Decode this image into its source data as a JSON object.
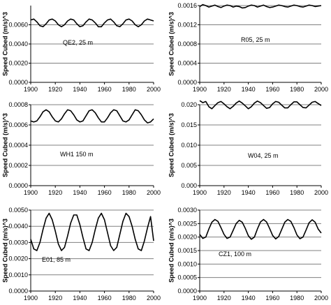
{
  "chart_data": [
    {
      "type": "line",
      "annotation": "QE2, 25 m",
      "ylabel": "Speed Cubed (m/s)^3",
      "xlim": [
        1900,
        2000
      ],
      "ylim": [
        0,
        0.008
      ],
      "x_ticks": [
        1900,
        1920,
        1940,
        1960,
        1980,
        2000
      ],
      "x_tick_labels": [
        "1900",
        "1920",
        "1940",
        "1960",
        "1980",
        "2000"
      ],
      "y_ticks": [
        0,
        0.002,
        0.004,
        0.006
      ],
      "y_tick_labels": [
        "0.0000",
        "0.0020",
        "0.0040",
        "0.0060"
      ],
      "grid": "horizontal",
      "series": [
        {
          "x": [
            1900,
            1902.5,
            1905,
            1907.5,
            1910,
            1912.5,
            1915,
            1917.5,
            1920,
            1922.5,
            1925,
            1927.5,
            1930,
            1932.5,
            1935,
            1937.5,
            1940,
            1942.5,
            1945,
            1947.5,
            1950,
            1952.5,
            1955,
            1957.5,
            1960,
            1962.5,
            1965,
            1967.5,
            1970,
            1972.5,
            1975,
            1977.5,
            1980,
            1982.5,
            1985,
            1987.5,
            1990,
            1992.5,
            1995,
            1997.5,
            2000
          ],
          "y": [
            0.0065,
            0.0066,
            0.0063,
            0.0059,
            0.0058,
            0.0061,
            0.0065,
            0.0066,
            0.0064,
            0.006,
            0.0058,
            0.006,
            0.0064,
            0.0066,
            0.0065,
            0.0061,
            0.0058,
            0.0059,
            0.0063,
            0.0066,
            0.0065,
            0.0062,
            0.0058,
            0.0058,
            0.0062,
            0.0065,
            0.0066,
            0.0063,
            0.0059,
            0.0058,
            0.0061,
            0.0065,
            0.0066,
            0.0064,
            0.006,
            0.0058,
            0.006,
            0.0064,
            0.0066,
            0.0065,
            0.0064
          ]
        }
      ]
    },
    {
      "type": "line",
      "annotation": "R05, 25 m",
      "ylabel": "Speed Cubed (m/s)^3",
      "xlim": [
        1900,
        2000
      ],
      "ylim": [
        0,
        0.0016
      ],
      "x_ticks": [
        1900,
        1920,
        1940,
        1960,
        1980,
        2000
      ],
      "x_tick_labels": [
        "1900",
        "1920",
        "1940",
        "1960",
        "1980",
        "2000"
      ],
      "y_ticks": [
        0,
        0.0004,
        0.0008,
        0.0012,
        0.0016
      ],
      "y_tick_labels": [
        "0.0000",
        "0.0004",
        "0.0008",
        "0.0012",
        "0.0016"
      ],
      "grid": "horizontal",
      "series": [
        {
          "x": [
            1900,
            1902.5,
            1905,
            1907.5,
            1910,
            1912.5,
            1915,
            1917.5,
            1920,
            1922.5,
            1925,
            1927.5,
            1930,
            1932.5,
            1935,
            1937.5,
            1940,
            1942.5,
            1945,
            1947.5,
            1950,
            1952.5,
            1955,
            1957.5,
            1960,
            1962.5,
            1965,
            1967.5,
            1970,
            1972.5,
            1975,
            1977.5,
            1980,
            1982.5,
            1985,
            1987.5,
            1990,
            1992.5,
            1995,
            1997.5,
            2000
          ],
          "y": [
            0.00158,
            0.00162,
            0.0016,
            0.00157,
            0.00159,
            0.00161,
            0.00158,
            0.00156,
            0.00159,
            0.00161,
            0.0016,
            0.00157,
            0.00159,
            0.00158,
            0.00155,
            0.00156,
            0.00159,
            0.00161,
            0.0016,
            0.00157,
            0.00159,
            0.00161,
            0.00158,
            0.00156,
            0.00157,
            0.00159,
            0.00161,
            0.0016,
            0.00158,
            0.00157,
            0.00159,
            0.00161,
            0.0016,
            0.00158,
            0.00157,
            0.00159,
            0.00161,
            0.0016,
            0.00158,
            0.00159,
            0.0016
          ]
        }
      ]
    },
    {
      "type": "line",
      "annotation": "WH1 150 m",
      "ylabel": "Speed Cubed (m/s)^3",
      "xlim": [
        1900,
        2000
      ],
      "ylim": [
        0,
        0.0008
      ],
      "x_ticks": [
        1900,
        1920,
        1940,
        1960,
        1980,
        2000
      ],
      "x_tick_labels": [
        "1900",
        "1920",
        "1940",
        "1960",
        "1980",
        "2000"
      ],
      "y_ticks": [
        0,
        0.0002,
        0.0004,
        0.0006,
        0.0008
      ],
      "y_tick_labels": [
        "0.0000",
        "0.0002",
        "0.0004",
        "0.0006",
        "0.0008"
      ],
      "grid": "horizontal",
      "series": [
        {
          "x": [
            1900,
            1902.5,
            1905,
            1907.5,
            1910,
            1912.5,
            1915,
            1917.5,
            1920,
            1922.5,
            1925,
            1927.5,
            1930,
            1932.5,
            1935,
            1937.5,
            1940,
            1942.5,
            1945,
            1947.5,
            1950,
            1952.5,
            1955,
            1957.5,
            1960,
            1962.5,
            1965,
            1967.5,
            1970,
            1972.5,
            1975,
            1977.5,
            1980,
            1982.5,
            1985,
            1987.5,
            1990,
            1992.5,
            1995,
            1997.5,
            2000
          ],
          "y": [
            0.00064,
            0.00063,
            0.00064,
            0.00068,
            0.00073,
            0.00075,
            0.00073,
            0.00068,
            0.00064,
            0.00063,
            0.00066,
            0.00071,
            0.00075,
            0.00074,
            0.0007,
            0.00065,
            0.00063,
            0.00064,
            0.00069,
            0.00074,
            0.00075,
            0.00072,
            0.00067,
            0.00063,
            0.00063,
            0.00067,
            0.00072,
            0.00075,
            0.00074,
            0.00069,
            0.00064,
            0.00063,
            0.00065,
            0.0007,
            0.00075,
            0.00074,
            0.0007,
            0.00065,
            0.00062,
            0.00063,
            0.00066
          ]
        }
      ]
    },
    {
      "type": "line",
      "annotation": "W04, 25 m",
      "ylabel": "Speed Cubed (m/s)^3",
      "xlim": [
        1900,
        2000
      ],
      "ylim": [
        0,
        0.02
      ],
      "x_ticks": [
        1900,
        1920,
        1940,
        1960,
        1980,
        2000
      ],
      "x_tick_labels": [
        "1900",
        "1920",
        "1940",
        "1960",
        "1980",
        "2000"
      ],
      "y_ticks": [
        0,
        0.005,
        0.01,
        0.015,
        0.02
      ],
      "y_tick_labels": [
        "0.000",
        "0.005",
        "0.010",
        "0.015",
        "0.020"
      ],
      "grid": "horizontal",
      "series": [
        {
          "x": [
            1900,
            1902.5,
            1905,
            1907.5,
            1910,
            1912.5,
            1915,
            1917.5,
            1920,
            1922.5,
            1925,
            1927.5,
            1930,
            1932.5,
            1935,
            1937.5,
            1940,
            1942.5,
            1945,
            1947.5,
            1950,
            1952.5,
            1955,
            1957.5,
            1960,
            1962.5,
            1965,
            1967.5,
            1970,
            1972.5,
            1975,
            1977.5,
            1980,
            1982.5,
            1985,
            1987.5,
            1990,
            1992.5,
            1995,
            1997.5,
            2000
          ],
          "y": [
            0.021,
            0.0205,
            0.0208,
            0.0195,
            0.019,
            0.0198,
            0.0205,
            0.0208,
            0.0202,
            0.0195,
            0.019,
            0.0196,
            0.0204,
            0.0209,
            0.0204,
            0.0197,
            0.019,
            0.0195,
            0.0204,
            0.0209,
            0.0205,
            0.0198,
            0.0191,
            0.0193,
            0.0202,
            0.0208,
            0.0206,
            0.0199,
            0.0192,
            0.0192,
            0.02,
            0.0207,
            0.0207,
            0.02,
            0.0193,
            0.0192,
            0.0199,
            0.0206,
            0.0208,
            0.0203,
            0.0198
          ]
        }
      ]
    },
    {
      "type": "line",
      "annotation": "E01, 85 m",
      "ylabel": "Speed Cubed (m/s)^3",
      "xlim": [
        1900,
        2000
      ],
      "ylim": [
        0,
        0.005
      ],
      "x_ticks": [
        1900,
        1920,
        1940,
        1960,
        1980,
        2000
      ],
      "x_tick_labels": [
        "1900",
        "1920",
        "1940",
        "1960",
        "1980",
        "2000"
      ],
      "y_ticks": [
        0,
        0.001,
        0.002,
        0.003,
        0.004,
        0.005
      ],
      "y_tick_labels": [
        "0.0000",
        "0.0010",
        "0.0020",
        "0.0030",
        "0.0040",
        "0.0050"
      ],
      "grid": "horizontal",
      "series": [
        {
          "x": [
            1900,
            1902.5,
            1905,
            1907.5,
            1910,
            1912.5,
            1915,
            1917.5,
            1920,
            1922.5,
            1925,
            1927.5,
            1930,
            1932.5,
            1935,
            1937.5,
            1940,
            1942.5,
            1945,
            1947.5,
            1950,
            1952.5,
            1955,
            1957.5,
            1960,
            1962.5,
            1965,
            1967.5,
            1970,
            1972.5,
            1975,
            1977.5,
            1980,
            1982.5,
            1985,
            1987.5,
            1990,
            1992.5,
            1995,
            1997.5,
            2000
          ],
          "y": [
            0.0032,
            0.0026,
            0.0025,
            0.003,
            0.0038,
            0.0045,
            0.0048,
            0.0044,
            0.0037,
            0.0029,
            0.0025,
            0.0027,
            0.0034,
            0.0042,
            0.0047,
            0.0047,
            0.0041,
            0.0033,
            0.0026,
            0.0025,
            0.003,
            0.0038,
            0.0045,
            0.0048,
            0.0044,
            0.0036,
            0.0028,
            0.0025,
            0.0027,
            0.0035,
            0.0043,
            0.0048,
            0.0046,
            0.004,
            0.0032,
            0.0026,
            0.0025,
            0.0031,
            0.0039,
            0.0046,
            0.0031
          ]
        }
      ]
    },
    {
      "type": "line",
      "annotation": "CZ1, 100 m",
      "ylabel": "Speed Cubed (m/s)^3",
      "xlim": [
        1900,
        2000
      ],
      "ylim": [
        0,
        0.003
      ],
      "x_ticks": [
        1900,
        1920,
        1940,
        1960,
        1980,
        2000
      ],
      "x_tick_labels": [
        "1900",
        "1920",
        "1940",
        "1960",
        "1980",
        "2000"
      ],
      "y_ticks": [
        0,
        0.0005,
        0.001,
        0.0015,
        0.002,
        0.0025,
        0.003
      ],
      "y_tick_labels": [
        "0.0000",
        "0.0005",
        "0.0010",
        "0.0015",
        "0.0020",
        "0.0025",
        "0.0030"
      ],
      "grid": "horizontal",
      "series": [
        {
          "x": [
            1900,
            1902.5,
            1905,
            1907.5,
            1910,
            1912.5,
            1915,
            1917.5,
            1920,
            1922.5,
            1925,
            1927.5,
            1930,
            1932.5,
            1935,
            1937.5,
            1940,
            1942.5,
            1945,
            1947.5,
            1950,
            1952.5,
            1955,
            1957.5,
            1960,
            1962.5,
            1965,
            1967.5,
            1970,
            1972.5,
            1975,
            1977.5,
            1980,
            1982.5,
            1985,
            1987.5,
            1990,
            1992.5,
            1995,
            1997.5,
            2000
          ],
          "y": [
            0.0021,
            0.00195,
            0.002,
            0.0023,
            0.00255,
            0.00265,
            0.00258,
            0.00235,
            0.0021,
            0.00195,
            0.002,
            0.00225,
            0.0025,
            0.00262,
            0.00255,
            0.00232,
            0.00205,
            0.00192,
            0.002,
            0.0023,
            0.00256,
            0.00265,
            0.00256,
            0.00232,
            0.00206,
            0.00193,
            0.00202,
            0.00228,
            0.00255,
            0.00265,
            0.00258,
            0.00235,
            0.00208,
            0.00194,
            0.002,
            0.00226,
            0.00253,
            0.00264,
            0.00255,
            0.0023,
            0.00215
          ]
        }
      ]
    }
  ],
  "colors": {
    "line": "#000000",
    "axis": "#000000",
    "grid": "#808080",
    "background": "#ffffff"
  }
}
